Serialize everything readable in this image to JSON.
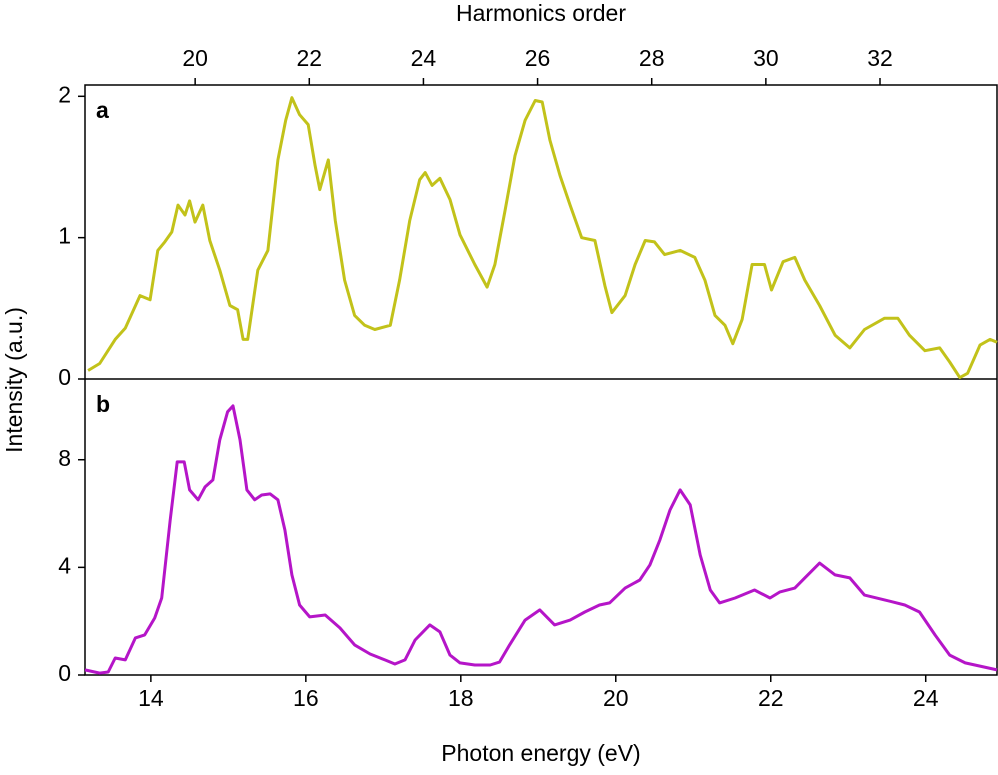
{
  "chart_data": [
    {
      "type": "line",
      "panel_label": "a",
      "ylabel": "Intensity (a.u.)",
      "x2label": "Harmonics order",
      "x2lim": [
        18.07,
        34.05
      ],
      "x2ticks": [
        20,
        22,
        24,
        26,
        28,
        30,
        32
      ],
      "xlim": [
        13.15,
        24.92
      ],
      "ylim": [
        0,
        2.08
      ],
      "yticks": [
        0,
        1,
        2
      ],
      "x": [
        13.19,
        13.34,
        13.54,
        13.67,
        13.86,
        13.99,
        14.09,
        14.18,
        14.27,
        14.35,
        14.44,
        14.5,
        14.57,
        14.67,
        14.76,
        14.89,
        15.02,
        15.12,
        15.19,
        15.25,
        15.38,
        15.51,
        15.64,
        15.74,
        15.82,
        15.92,
        16.03,
        16.12,
        16.18,
        16.29,
        16.38,
        16.5,
        16.63,
        16.76,
        16.89,
        17.09,
        17.21,
        17.34,
        17.47,
        17.54,
        17.63,
        17.73,
        17.86,
        17.99,
        18.18,
        18.34,
        18.44,
        18.57,
        18.7,
        18.83,
        18.96,
        19.05,
        19.15,
        19.28,
        19.41,
        19.56,
        19.73,
        19.86,
        19.95,
        20.12,
        20.25,
        20.38,
        20.5,
        20.63,
        20.83,
        21.02,
        21.15,
        21.28,
        21.41,
        21.51,
        21.63,
        21.76,
        21.92,
        22.01,
        22.16,
        22.31,
        22.44,
        22.63,
        22.83,
        23.02,
        23.21,
        23.47,
        23.64,
        23.79,
        23.99,
        24.18,
        24.31,
        24.44,
        24.54,
        24.7,
        24.83,
        24.92
      ],
      "series": [
        {
          "color": "#c2c21a",
          "values": [
            0.06,
            0.11,
            0.28,
            0.36,
            0.59,
            0.56,
            0.91,
            0.97,
            1.04,
            1.23,
            1.16,
            1.26,
            1.11,
            1.23,
            0.98,
            0.77,
            0.52,
            0.49,
            0.28,
            0.28,
            0.77,
            0.91,
            1.55,
            1.83,
            1.99,
            1.87,
            1.8,
            1.51,
            1.34,
            1.55,
            1.12,
            0.7,
            0.45,
            0.38,
            0.35,
            0.38,
            0.7,
            1.12,
            1.41,
            1.46,
            1.37,
            1.42,
            1.27,
            1.02,
            0.81,
            0.65,
            0.81,
            1.19,
            1.58,
            1.83,
            1.97,
            1.96,
            1.69,
            1.44,
            1.23,
            1.0,
            0.98,
            0.66,
            0.47,
            0.59,
            0.81,
            0.98,
            0.97,
            0.88,
            0.91,
            0.86,
            0.7,
            0.45,
            0.38,
            0.25,
            0.42,
            0.81,
            0.81,
            0.63,
            0.83,
            0.86,
            0.7,
            0.52,
            0.31,
            0.22,
            0.35,
            0.43,
            0.43,
            0.31,
            0.2,
            0.22,
            0.12,
            0.01,
            0.04,
            0.24,
            0.28,
            0.26
          ]
        }
      ]
    },
    {
      "type": "line",
      "panel_label": "b",
      "xlabel": "Photon energy (eV)",
      "xlim": [
        13.15,
        24.92
      ],
      "xticks": [
        14,
        16,
        18,
        20,
        22,
        24
      ],
      "ylim": [
        0,
        11
      ],
      "yticks": [
        0,
        4,
        8
      ],
      "x": [
        13.15,
        13.34,
        13.45,
        13.54,
        13.67,
        13.8,
        13.92,
        14.05,
        14.14,
        14.25,
        14.34,
        14.43,
        14.5,
        14.61,
        14.7,
        14.8,
        14.89,
        14.99,
        15.06,
        15.15,
        15.24,
        15.34,
        15.43,
        15.54,
        15.64,
        15.73,
        15.82,
        15.92,
        16.05,
        16.25,
        16.44,
        16.63,
        16.83,
        17.02,
        17.15,
        17.28,
        17.41,
        17.6,
        17.73,
        17.86,
        17.99,
        18.18,
        18.38,
        18.5,
        18.63,
        18.83,
        19.02,
        19.21,
        19.41,
        19.6,
        19.79,
        19.92,
        20.12,
        20.31,
        20.44,
        20.57,
        20.7,
        20.83,
        20.96,
        21.09,
        21.22,
        21.34,
        21.54,
        21.79,
        21.99,
        22.12,
        22.31,
        22.44,
        22.63,
        22.83,
        23.02,
        23.21,
        23.47,
        23.73,
        23.92,
        24.12,
        24.31,
        24.51,
        24.7,
        24.92
      ],
      "series": [
        {
          "color": "#b515c8",
          "values": [
            0.19,
            0.07,
            0.11,
            0.63,
            0.56,
            1.38,
            1.49,
            2.12,
            2.86,
            5.76,
            7.92,
            7.92,
            6.88,
            6.51,
            6.99,
            7.25,
            8.74,
            9.78,
            10.0,
            8.74,
            6.88,
            6.51,
            6.69,
            6.73,
            6.51,
            5.39,
            3.72,
            2.6,
            2.16,
            2.23,
            1.75,
            1.12,
            0.78,
            0.56,
            0.41,
            0.56,
            1.3,
            1.86,
            1.6,
            0.74,
            0.45,
            0.37,
            0.37,
            0.48,
            1.12,
            2.04,
            2.42,
            1.86,
            2.04,
            2.34,
            2.6,
            2.68,
            3.23,
            3.53,
            4.09,
            5.02,
            6.13,
            6.88,
            6.32,
            4.46,
            3.16,
            2.68,
            2.86,
            3.16,
            2.86,
            3.09,
            3.23,
            3.61,
            4.16,
            3.72,
            3.61,
            2.97,
            2.79,
            2.6,
            2.34,
            1.49,
            0.74,
            0.45,
            0.33,
            0.19
          ]
        }
      ]
    }
  ]
}
